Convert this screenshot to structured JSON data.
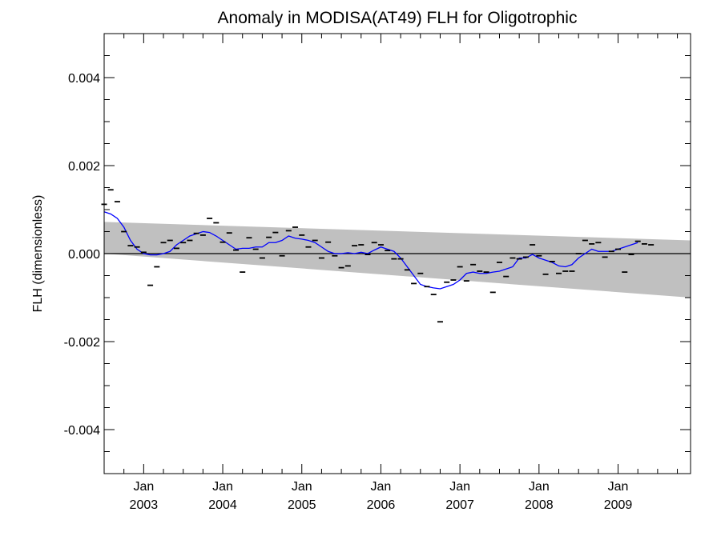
{
  "chart_data": {
    "type": "scatter",
    "title": "Anomaly in MODISA(AT49) FLH for Oligotrophic",
    "ylabel": "FLH (dimensionless)",
    "xlabel": "",
    "xlim": [
      "2002-07",
      "2009-12"
    ],
    "ylim": [
      -0.005,
      0.005
    ],
    "yticks": [
      {
        "value": 0.004,
        "label": "0.004"
      },
      {
        "value": 0.002,
        "label": "0.002"
      },
      {
        "value": 0.0,
        "label": "0.000"
      },
      {
        "value": -0.002,
        "label": "-0.002"
      },
      {
        "value": -0.004,
        "label": "-0.004"
      }
    ],
    "xticks": [
      {
        "date": "2003-01",
        "month": "Jan",
        "year": "2003"
      },
      {
        "date": "2004-01",
        "month": "Jan",
        "year": "2004"
      },
      {
        "date": "2005-01",
        "month": "Jan",
        "year": "2005"
      },
      {
        "date": "2006-01",
        "month": "Jan",
        "year": "2006"
      },
      {
        "date": "2007-01",
        "month": "Jan",
        "year": "2007"
      },
      {
        "date": "2008-01",
        "month": "Jan",
        "year": "2008"
      },
      {
        "date": "2009-01",
        "month": "Jan",
        "year": "2009"
      }
    ],
    "grid": false,
    "colors": {
      "smoothed_line": "#0000ff",
      "band": "#c0c0c0",
      "points": "#000000",
      "zero_line": "#000000"
    },
    "confidence_band": {
      "upper": [
        [
          "2002-07",
          0.00072
        ],
        [
          "2009-12",
          0.0003
        ]
      ],
      "lower": [
        [
          "2002-07",
          0.0
        ],
        [
          "2009-12",
          -0.001
        ]
      ]
    },
    "points": [
      [
        "2002-07",
        0.00112
      ],
      [
        "2002-08",
        0.00145
      ],
      [
        "2002-09",
        0.00118
      ],
      [
        "2002-10",
        0.0005
      ],
      [
        "2002-11",
        0.00018
      ],
      [
        "2002-12",
        0.00015
      ],
      [
        "2003-01",
        3e-05
      ],
      [
        "2003-02",
        -0.00072
      ],
      [
        "2003-03",
        -0.0003
      ],
      [
        "2003-04",
        0.00025
      ],
      [
        "2003-05",
        0.0003
      ],
      [
        "2003-06",
        0.00012
      ],
      [
        "2003-07",
        0.00025
      ],
      [
        "2003-08",
        0.0003
      ],
      [
        "2003-09",
        0.00046
      ],
      [
        "2003-10",
        0.00042
      ],
      [
        "2003-11",
        0.0008
      ],
      [
        "2003-12",
        0.0007
      ],
      [
        "2004-01",
        0.00026
      ],
      [
        "2004-02",
        0.00047
      ],
      [
        "2004-03",
        8e-05
      ],
      [
        "2004-04",
        -0.00042
      ],
      [
        "2004-05",
        0.00036
      ],
      [
        "2004-06",
        0.0001
      ],
      [
        "2004-07",
        -0.0001
      ],
      [
        "2004-08",
        0.00037
      ],
      [
        "2004-09",
        0.00048
      ],
      [
        "2004-10",
        -5e-05
      ],
      [
        "2004-11",
        0.00052
      ],
      [
        "2004-12",
        0.0006
      ],
      [
        "2005-01",
        0.00042
      ],
      [
        "2005-02",
        0.00015
      ],
      [
        "2005-03",
        0.0003
      ],
      [
        "2005-04",
        -0.0001
      ],
      [
        "2005-05",
        0.00026
      ],
      [
        "2005-06",
        -5e-05
      ],
      [
        "2005-07",
        -0.00032
      ],
      [
        "2005-08",
        -0.00028
      ],
      [
        "2005-09",
        0.00018
      ],
      [
        "2005-10",
        0.0002
      ],
      [
        "2005-11",
        -2e-05
      ],
      [
        "2005-12",
        0.00025
      ],
      [
        "2006-01",
        0.0002
      ],
      [
        "2006-02",
        7e-05
      ],
      [
        "2006-03",
        -0.00012
      ],
      [
        "2006-04",
        -0.00012
      ],
      [
        "2006-05",
        -0.00037
      ],
      [
        "2006-06",
        -0.00068
      ],
      [
        "2006-07",
        -0.00045
      ],
      [
        "2006-08",
        -0.00075
      ],
      [
        "2006-09",
        -0.00093
      ],
      [
        "2006-10",
        -0.00155
      ],
      [
        "2006-11",
        -0.00065
      ],
      [
        "2006-12",
        -0.0006
      ],
      [
        "2007-01",
        -0.0003
      ],
      [
        "2007-02",
        -0.00062
      ],
      [
        "2007-03",
        -0.00025
      ],
      [
        "2007-04",
        -0.0004
      ],
      [
        "2007-05",
        -0.00042
      ],
      [
        "2007-06",
        -0.00088
      ],
      [
        "2007-07",
        -0.0002
      ],
      [
        "2007-08",
        -0.00052
      ],
      [
        "2007-09",
        -0.0001
      ],
      [
        "2007-10",
        -0.00012
      ],
      [
        "2007-11",
        -8e-05
      ],
      [
        "2007-12",
        0.0002
      ],
      [
        "2008-01",
        -5e-05
      ],
      [
        "2008-02",
        -0.00047
      ],
      [
        "2008-03",
        -0.00018
      ],
      [
        "2008-04",
        -0.00045
      ],
      [
        "2008-05",
        -0.0004
      ],
      [
        "2008-06",
        -0.0004
      ],
      [
        "2008-07",
        0.0
      ],
      [
        "2008-08",
        0.0003
      ],
      [
        "2008-09",
        0.00022
      ],
      [
        "2008-10",
        0.00025
      ],
      [
        "2008-11",
        -8e-05
      ],
      [
        "2008-12",
        5e-05
      ],
      [
        "2009-01",
        0.0001
      ],
      [
        "2009-02",
        -0.00042
      ],
      [
        "2009-03",
        -2e-05
      ],
      [
        "2009-04",
        0.00028
      ],
      [
        "2009-05",
        0.00022
      ],
      [
        "2009-06",
        0.0002
      ]
    ],
    "smoothed": [
      [
        "2002-07",
        0.00095
      ],
      [
        "2002-08",
        0.0009
      ],
      [
        "2002-09",
        0.0008
      ],
      [
        "2002-10",
        0.0006
      ],
      [
        "2002-11",
        0.0003
      ],
      [
        "2002-12",
        0.0001
      ],
      [
        "2003-01",
        0.0
      ],
      [
        "2003-02",
        -3e-05
      ],
      [
        "2003-03",
        -3e-05
      ],
      [
        "2003-04",
        0.0
      ],
      [
        "2003-05",
        5e-05
      ],
      [
        "2003-06",
        0.0002
      ],
      [
        "2003-07",
        0.0003
      ],
      [
        "2003-08",
        0.0004
      ],
      [
        "2003-09",
        0.00045
      ],
      [
        "2003-10",
        0.0005
      ],
      [
        "2003-11",
        0.00048
      ],
      [
        "2003-12",
        0.0004
      ],
      [
        "2004-01",
        0.0003
      ],
      [
        "2004-02",
        0.0002
      ],
      [
        "2004-03",
        0.0001
      ],
      [
        "2004-04",
        0.00012
      ],
      [
        "2004-05",
        0.00012
      ],
      [
        "2004-06",
        0.00015
      ],
      [
        "2004-07",
        0.00015
      ],
      [
        "2004-08",
        0.00025
      ],
      [
        "2004-09",
        0.00025
      ],
      [
        "2004-10",
        0.0003
      ],
      [
        "2004-11",
        0.0004
      ],
      [
        "2004-12",
        0.00035
      ],
      [
        "2005-01",
        0.00033
      ],
      [
        "2005-02",
        0.0003
      ],
      [
        "2005-03",
        0.00025
      ],
      [
        "2005-04",
        0.00015
      ],
      [
        "2005-05",
        5e-05
      ],
      [
        "2005-06",
        0.0
      ],
      [
        "2005-07",
        0.0
      ],
      [
        "2005-08",
        2e-05
      ],
      [
        "2005-09",
        0.0
      ],
      [
        "2005-10",
        3e-05
      ],
      [
        "2005-11",
        0.0
      ],
      [
        "2005-12",
        8e-05
      ],
      [
        "2006-01",
        0.00015
      ],
      [
        "2006-02",
        0.0001
      ],
      [
        "2006-03",
        5e-05
      ],
      [
        "2006-04",
        -0.0001
      ],
      [
        "2006-05",
        -0.0003
      ],
      [
        "2006-06",
        -0.0005
      ],
      [
        "2006-07",
        -0.0007
      ],
      [
        "2006-08",
        -0.00075
      ],
      [
        "2006-09",
        -0.00078
      ],
      [
        "2006-10",
        -0.0008
      ],
      [
        "2006-11",
        -0.00075
      ],
      [
        "2006-12",
        -0.0007
      ],
      [
        "2007-01",
        -0.0006
      ],
      [
        "2007-02",
        -0.00045
      ],
      [
        "2007-03",
        -0.00042
      ],
      [
        "2007-04",
        -0.00045
      ],
      [
        "2007-05",
        -0.00045
      ],
      [
        "2007-06",
        -0.00042
      ],
      [
        "2007-07",
        -0.0004
      ],
      [
        "2007-08",
        -0.00035
      ],
      [
        "2007-09",
        -0.0003
      ],
      [
        "2007-10",
        -0.0001
      ],
      [
        "2007-11",
        -0.0001
      ],
      [
        "2007-12",
        -2e-05
      ],
      [
        "2008-01",
        -0.0001
      ],
      [
        "2008-02",
        -0.00015
      ],
      [
        "2008-03",
        -0.0002
      ],
      [
        "2008-04",
        -0.00028
      ],
      [
        "2008-05",
        -0.0003
      ],
      [
        "2008-06",
        -0.00025
      ],
      [
        "2008-07",
        -0.0001
      ],
      [
        "2008-08",
        0.0
      ],
      [
        "2008-09",
        0.0001
      ],
      [
        "2008-10",
        5e-05
      ],
      [
        "2008-11",
        5e-05
      ],
      [
        "2008-12",
        5e-05
      ],
      [
        "2009-01",
        0.0001
      ],
      [
        "2009-02",
        0.00015
      ],
      [
        "2009-03",
        0.0002
      ],
      [
        "2009-04",
        0.00025
      ]
    ]
  }
}
